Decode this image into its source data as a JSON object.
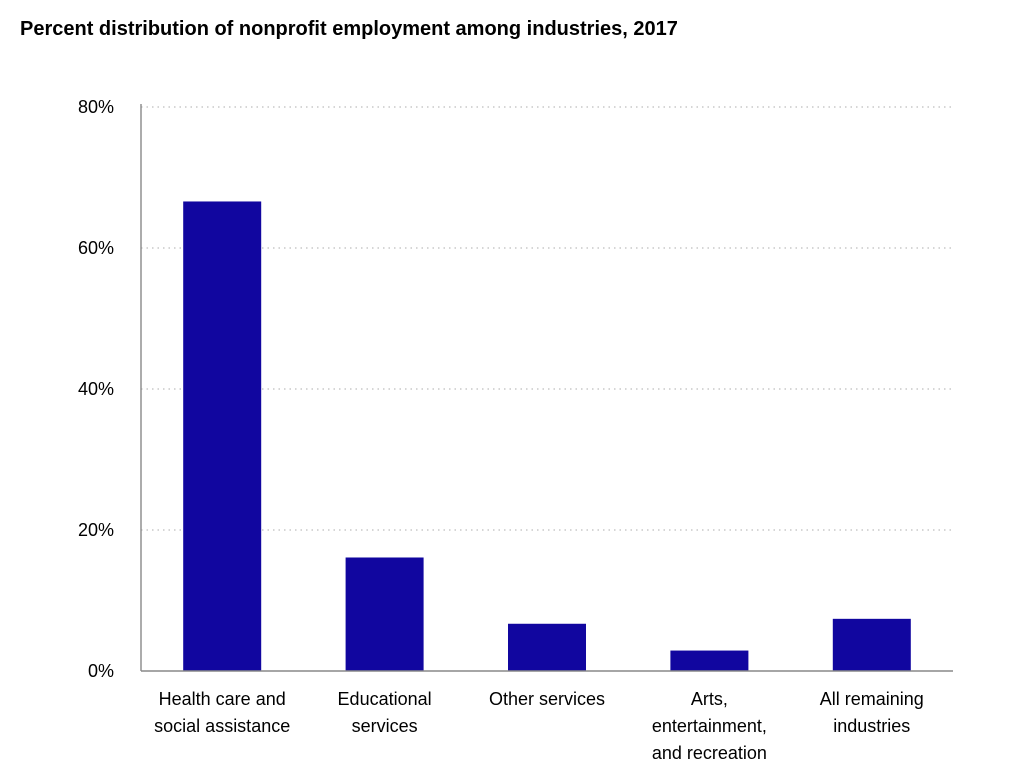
{
  "chart_data": {
    "type": "bar",
    "title": "Percent distribution of nonprofit employment among industries, 2017",
    "xlabel": "",
    "ylabel": "",
    "categories": [
      [
        "Health care and",
        "social assistance"
      ],
      [
        "Educational",
        "services"
      ],
      [
        "Other services"
      ],
      [
        "Arts,",
        "entertainment,",
        "and recreation"
      ],
      [
        "All remaining",
        "industries"
      ]
    ],
    "values": [
      66.6,
      16.1,
      6.7,
      2.9,
      7.4
    ],
    "ylim": [
      0,
      80
    ],
    "yticks": [
      0,
      20,
      40,
      60,
      80
    ],
    "ytick_labels": [
      "0%",
      "20%",
      "40%",
      "60%",
      "80%"
    ],
    "grid": true,
    "legend": "none",
    "bar_color": "#11069f"
  }
}
